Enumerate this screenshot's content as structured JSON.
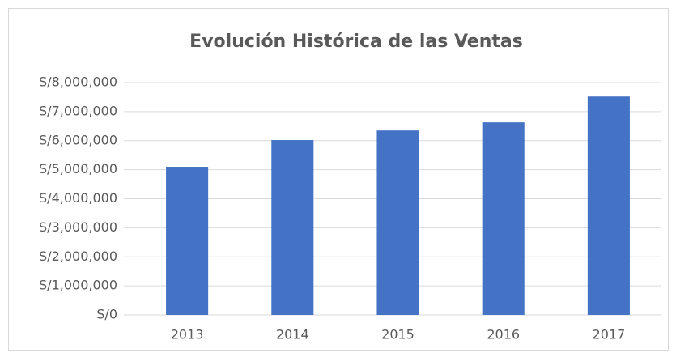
{
  "chart_data": {
    "type": "bar",
    "title": "Evolución Histórica de las Ventas",
    "categories": [
      "2013",
      "2014",
      "2015",
      "2016",
      "2017"
    ],
    "values": [
      5100000,
      6020000,
      6350000,
      6630000,
      7520000
    ],
    "color": "#4472c4",
    "ylim": [
      0,
      8000000
    ],
    "yticks": [
      {
        "value": 0,
        "label": "S/0"
      },
      {
        "value": 1000000,
        "label": "S/1,000,000"
      },
      {
        "value": 2000000,
        "label": "S/2,000,000"
      },
      {
        "value": 3000000,
        "label": "S/3,000,000"
      },
      {
        "value": 4000000,
        "label": "S/4,000,000"
      },
      {
        "value": 5000000,
        "label": "S/5,000,000"
      },
      {
        "value": 6000000,
        "label": "S/6,000,000"
      },
      {
        "value": 7000000,
        "label": "S/7,000,000"
      },
      {
        "value": 8000000,
        "label": "S/8,000,000"
      }
    ],
    "grid": true
  }
}
